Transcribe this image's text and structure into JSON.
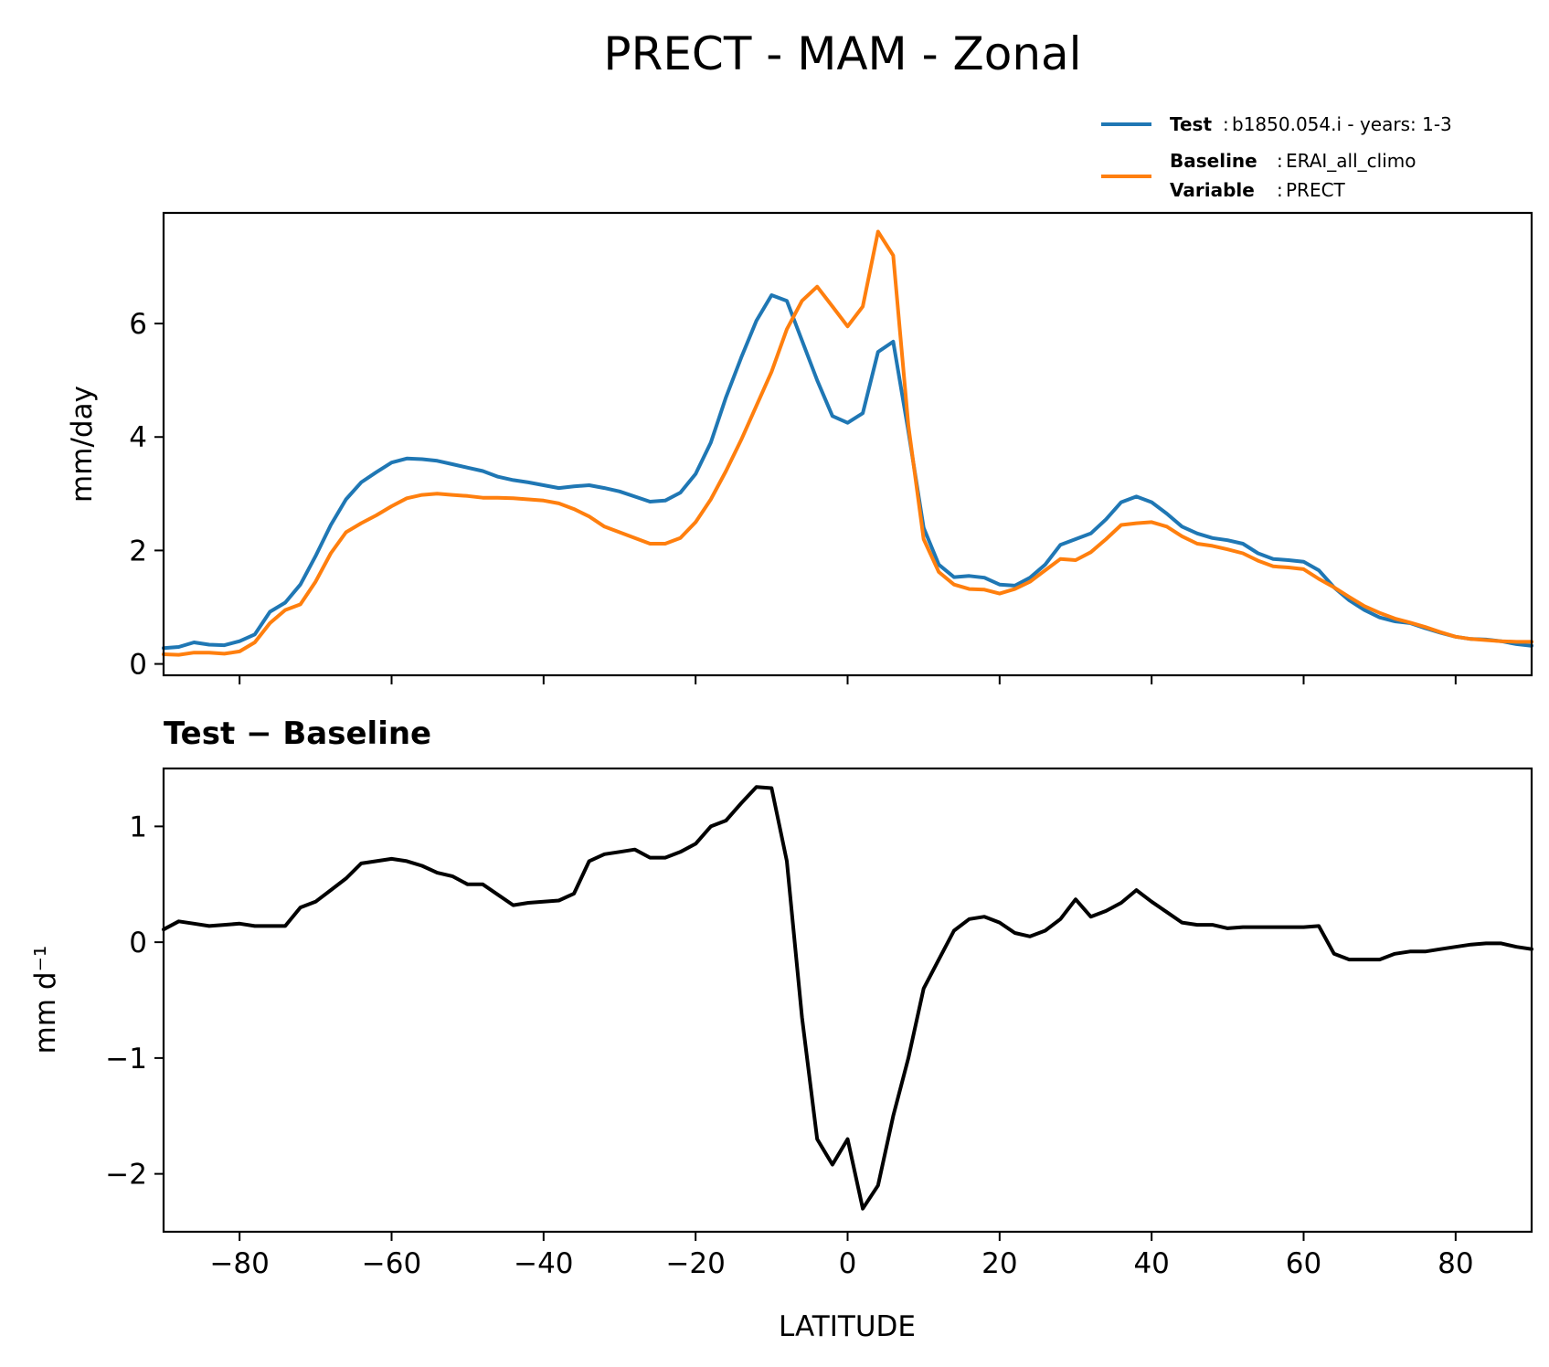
{
  "title": "PRECT - MAM - Zonal",
  "legend": {
    "test_label": "Test",
    "test_value": "b1850.054.i - years: 1-3",
    "baseline_label": "Baseline",
    "baseline_value": "ERAI_all_climo",
    "variable_label": "Variable",
    "variable_value": "PRECT"
  },
  "chart_data": [
    {
      "type": "line",
      "title": "",
      "xlabel": "",
      "ylabel": "mm/day",
      "xlim": [
        -90,
        90
      ],
      "ylim": [
        -0.2,
        7.95
      ],
      "yticks": [
        0,
        2,
        4,
        6
      ],
      "xticks": [
        -80,
        -60,
        -40,
        -20,
        0,
        20,
        40,
        60,
        80
      ],
      "grid": false,
      "legend_position": "above-right",
      "series": [
        {
          "name": "Test",
          "color": "#1f77b4",
          "x": [
            -90,
            -88,
            -86,
            -84,
            -82,
            -80,
            -78,
            -76,
            -74,
            -72,
            -70,
            -68,
            -66,
            -64,
            -62,
            -60,
            -58,
            -56,
            -54,
            -52,
            -50,
            -48,
            -46,
            -44,
            -42,
            -40,
            -38,
            -36,
            -34,
            -32,
            -30,
            -28,
            -26,
            -24,
            -22,
            -20,
            -18,
            -16,
            -14,
            -12,
            -10,
            -8,
            -6,
            -4,
            -2,
            0,
            2,
            4,
            6,
            8,
            10,
            12,
            14,
            16,
            18,
            20,
            22,
            24,
            26,
            28,
            30,
            32,
            34,
            36,
            38,
            40,
            42,
            44,
            46,
            48,
            50,
            52,
            54,
            56,
            58,
            60,
            62,
            64,
            66,
            68,
            70,
            72,
            74,
            76,
            78,
            80,
            82,
            84,
            86,
            88,
            90
          ],
          "values": [
            0.28,
            0.3,
            0.38,
            0.34,
            0.33,
            0.4,
            0.52,
            0.92,
            1.08,
            1.4,
            1.9,
            2.45,
            2.9,
            3.2,
            3.38,
            3.55,
            3.62,
            3.61,
            3.58,
            3.52,
            3.46,
            3.4,
            3.3,
            3.24,
            3.2,
            3.15,
            3.1,
            3.13,
            3.15,
            3.1,
            3.04,
            2.95,
            2.86,
            2.88,
            3.02,
            3.35,
            3.9,
            4.7,
            5.4,
            6.05,
            6.5,
            6.4,
            5.7,
            5.0,
            4.37,
            4.25,
            4.42,
            5.5,
            5.68,
            4.1,
            2.4,
            1.75,
            1.53,
            1.55,
            1.52,
            1.4,
            1.38,
            1.52,
            1.75,
            2.1,
            2.2,
            2.3,
            2.55,
            2.85,
            2.95,
            2.85,
            2.65,
            2.42,
            2.3,
            2.22,
            2.18,
            2.12,
            1.95,
            1.85,
            1.83,
            1.8,
            1.65,
            1.35,
            1.12,
            0.95,
            0.82,
            0.75,
            0.72,
            0.63,
            0.55,
            0.48,
            0.44,
            0.43,
            0.4,
            0.35,
            0.32
          ]
        },
        {
          "name": "Baseline",
          "color": "#ff7f0e",
          "x": [
            -90,
            -88,
            -86,
            -84,
            -82,
            -80,
            -78,
            -76,
            -74,
            -72,
            -70,
            -68,
            -66,
            -64,
            -62,
            -60,
            -58,
            -56,
            -54,
            -52,
            -50,
            -48,
            -46,
            -44,
            -42,
            -40,
            -38,
            -36,
            -34,
            -32,
            -30,
            -28,
            -26,
            -24,
            -22,
            -20,
            -18,
            -16,
            -14,
            -12,
            -10,
            -8,
            -6,
            -4,
            -2,
            0,
            2,
            4,
            6,
            8,
            10,
            12,
            14,
            16,
            18,
            20,
            22,
            24,
            26,
            28,
            30,
            32,
            34,
            36,
            38,
            40,
            42,
            44,
            46,
            48,
            50,
            52,
            54,
            56,
            58,
            60,
            62,
            64,
            66,
            68,
            70,
            72,
            74,
            76,
            78,
            80,
            82,
            84,
            86,
            88,
            90
          ],
          "values": [
            0.17,
            0.16,
            0.2,
            0.2,
            0.18,
            0.22,
            0.38,
            0.72,
            0.95,
            1.05,
            1.45,
            1.95,
            2.32,
            2.48,
            2.62,
            2.78,
            2.92,
            2.98,
            3.0,
            2.98,
            2.96,
            2.93,
            2.93,
            2.92,
            2.9,
            2.88,
            2.83,
            2.73,
            2.6,
            2.42,
            2.32,
            2.22,
            2.12,
            2.12,
            2.22,
            2.5,
            2.9,
            3.4,
            3.95,
            4.55,
            5.15,
            5.9,
            6.4,
            6.65,
            6.3,
            5.95,
            6.3,
            7.62,
            7.2,
            4.2,
            2.2,
            1.62,
            1.4,
            1.32,
            1.31,
            1.24,
            1.32,
            1.45,
            1.65,
            1.85,
            1.83,
            1.97,
            2.2,
            2.45,
            2.48,
            2.5,
            2.42,
            2.25,
            2.12,
            2.08,
            2.02,
            1.95,
            1.82,
            1.72,
            1.7,
            1.67,
            1.5,
            1.35,
            1.18,
            1.02,
            0.9,
            0.8,
            0.73,
            0.65,
            0.56,
            0.48,
            0.44,
            0.42,
            0.4,
            0.39,
            0.39
          ]
        }
      ]
    },
    {
      "type": "line",
      "title": "Test − Baseline",
      "xlabel": "LATITUDE",
      "ylabel": "mm d⁻¹",
      "xlim": [
        -90,
        90
      ],
      "ylim": [
        -2.5,
        1.5
      ],
      "yticks": [
        -2,
        -1,
        0,
        1
      ],
      "xticks": [
        -80,
        -60,
        -40,
        -20,
        0,
        20,
        40,
        60,
        80
      ],
      "grid": false,
      "series": [
        {
          "name": "",
          "color": "#000000",
          "x": [
            -90,
            -88,
            -86,
            -84,
            -82,
            -80,
            -78,
            -76,
            -74,
            -72,
            -70,
            -68,
            -66,
            -64,
            -62,
            -60,
            -58,
            -56,
            -54,
            -52,
            -50,
            -48,
            -46,
            -44,
            -42,
            -40,
            -38,
            -36,
            -34,
            -32,
            -30,
            -28,
            -26,
            -24,
            -22,
            -20,
            -18,
            -16,
            -14,
            -12,
            -10,
            -8,
            -6,
            -4,
            -2,
            0,
            2,
            4,
            6,
            8,
            10,
            12,
            14,
            16,
            18,
            20,
            22,
            24,
            26,
            28,
            30,
            32,
            34,
            36,
            38,
            40,
            42,
            44,
            46,
            48,
            50,
            52,
            54,
            56,
            58,
            60,
            62,
            64,
            66,
            68,
            70,
            72,
            74,
            76,
            78,
            80,
            82,
            84,
            86,
            88,
            90
          ],
          "values": [
            0.11,
            0.18,
            0.16,
            0.14,
            0.15,
            0.16,
            0.14,
            0.14,
            0.14,
            0.3,
            0.35,
            0.45,
            0.55,
            0.68,
            0.7,
            0.72,
            0.7,
            0.66,
            0.6,
            0.57,
            0.5,
            0.5,
            0.41,
            0.32,
            0.34,
            0.35,
            0.36,
            0.42,
            0.7,
            0.76,
            0.78,
            0.8,
            0.73,
            0.73,
            0.78,
            0.85,
            1.0,
            1.05,
            1.2,
            1.34,
            1.33,
            0.7,
            -0.65,
            -1.7,
            -1.92,
            -1.7,
            -2.3,
            -2.1,
            -1.5,
            -1.0,
            -0.4,
            -0.15,
            0.1,
            0.2,
            0.22,
            0.17,
            0.08,
            0.05,
            0.1,
            0.2,
            0.37,
            0.22,
            0.27,
            0.34,
            0.45,
            0.35,
            0.26,
            0.17,
            0.15,
            0.15,
            0.12,
            0.13,
            0.13,
            0.13,
            0.13,
            0.13,
            0.14,
            -0.1,
            -0.15,
            -0.15,
            -0.15,
            -0.1,
            -0.08,
            -0.08,
            -0.06,
            -0.04,
            -0.02,
            -0.01,
            -0.01,
            -0.04,
            -0.06
          ]
        }
      ]
    }
  ]
}
